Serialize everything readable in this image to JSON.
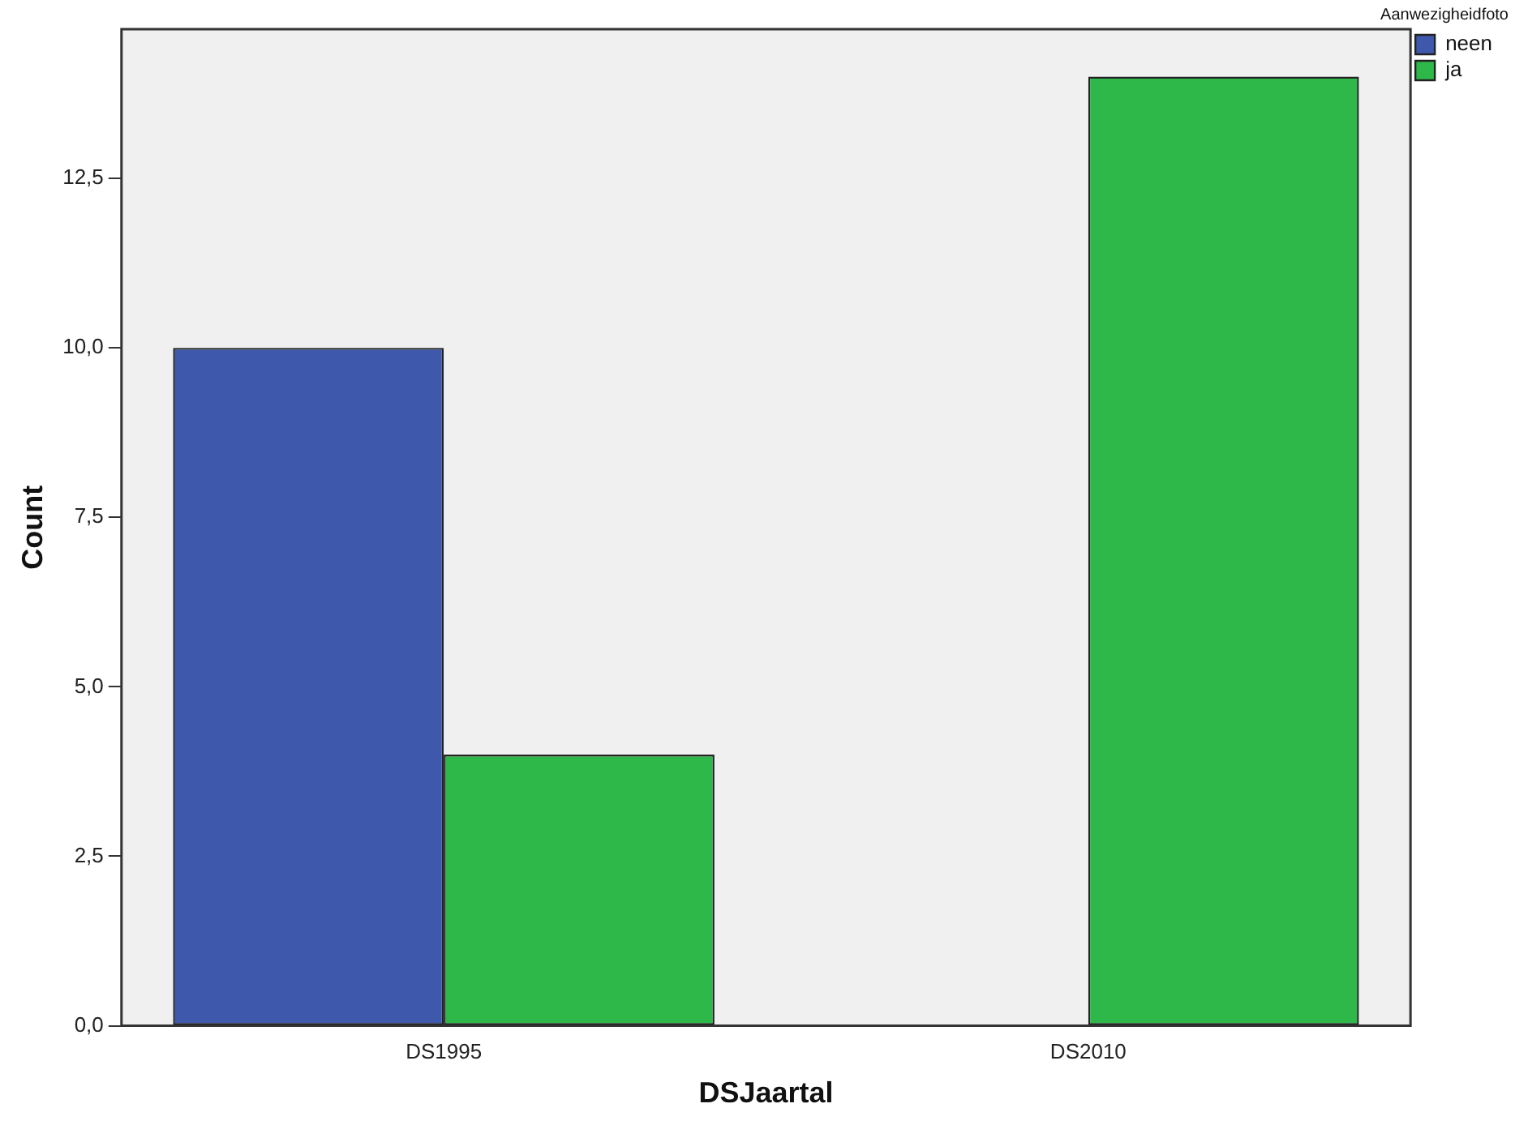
{
  "chart_data": {
    "type": "bar",
    "xlabel": "DSJaartal",
    "ylabel": "Count",
    "legend_title": "Aanwezigheidfoto",
    "legend": "top right",
    "categories": [
      "DS1995",
      "DS2010"
    ],
    "series": [
      {
        "name": "neen",
        "color": "#3e58ac",
        "values": [
          10,
          0
        ]
      },
      {
        "name": "ja",
        "color": "#2fb84a",
        "values": [
          4,
          14
        ]
      }
    ],
    "ylim": [
      0,
      14.7
    ],
    "yticks": [
      {
        "value": 0,
        "label": "0,0"
      },
      {
        "value": 2.5,
        "label": "2,5"
      },
      {
        "value": 5,
        "label": "5,0"
      },
      {
        "value": 7.5,
        "label": "7,5"
      },
      {
        "value": 10,
        "label": "10,0"
      },
      {
        "value": 12.5,
        "label": "12,5"
      }
    ],
    "grid": false
  }
}
